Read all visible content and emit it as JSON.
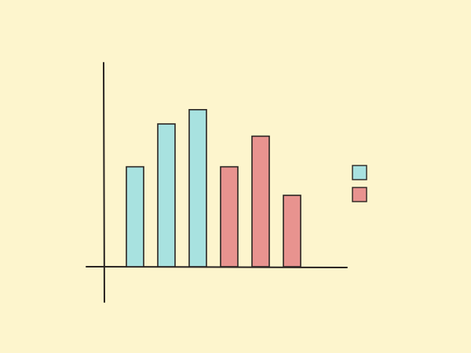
{
  "chart_data": {
    "type": "bar",
    "categories": [
      null,
      null,
      null,
      null,
      null,
      null
    ],
    "series": [
      {
        "color": "#a8e2e0",
        "values": [
          49,
          70,
          77,
          null,
          null,
          null
        ]
      },
      {
        "color": "#e8938f",
        "values": [
          null,
          null,
          null,
          49,
          64,
          35
        ]
      }
    ],
    "ylim": [
      0,
      100
    ],
    "legend": "right"
  }
}
